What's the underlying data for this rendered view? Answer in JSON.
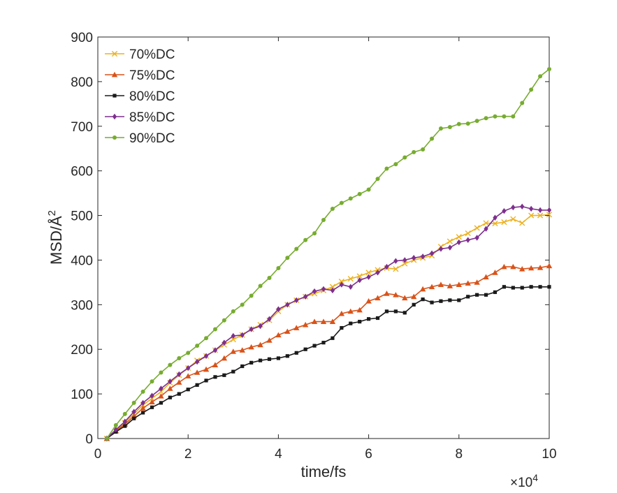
{
  "chart_data": {
    "type": "line",
    "title": "",
    "xlabel": "time/fs",
    "ylabel_main": "MSD/Å",
    "ylabel_sup": "2",
    "x_multiplier_base": "×10",
    "x_multiplier_exp": "4",
    "xlim": [
      0,
      10
    ],
    "ylim": [
      0,
      900
    ],
    "xticks": [
      0,
      2,
      4,
      6,
      8,
      10
    ],
    "xtick_labels": [
      "0",
      "2",
      "4",
      "6",
      "8",
      "10"
    ],
    "yticks": [
      0,
      100,
      200,
      300,
      400,
      500,
      600,
      700,
      800,
      900
    ],
    "ytick_labels": [
      "0",
      "100",
      "200",
      "300",
      "400",
      "500",
      "600",
      "700",
      "800",
      "900"
    ],
    "grid": false,
    "legend_position": "top-left",
    "x": [
      0.2,
      0.4,
      0.6,
      0.8,
      1.0,
      1.2,
      1.4,
      1.6,
      1.8,
      2.0,
      2.2,
      2.4,
      2.6,
      2.8,
      3.0,
      3.2,
      3.4,
      3.6,
      3.8,
      4.0,
      4.2,
      4.4,
      4.6,
      4.8,
      5.0,
      5.2,
      5.4,
      5.6,
      5.8,
      6.0,
      6.2,
      6.4,
      6.6,
      6.8,
      7.0,
      7.2,
      7.4,
      7.6,
      7.8,
      8.0,
      8.2,
      8.4,
      8.6,
      8.8,
      9.0,
      9.2,
      9.4,
      9.6,
      9.8,
      10.0
    ],
    "series": [
      {
        "name": "70%DC",
        "color": "#EDB120",
        "marker": "x",
        "values": [
          0,
          18,
          35,
          55,
          75,
          90,
          105,
          125,
          142,
          158,
          175,
          185,
          198,
          210,
          222,
          232,
          245,
          255,
          265,
          285,
          300,
          310,
          318,
          325,
          332,
          340,
          352,
          358,
          364,
          372,
          378,
          382,
          380,
          392,
          400,
          405,
          410,
          430,
          442,
          452,
          460,
          472,
          483,
          482,
          485,
          492,
          483,
          500,
          500,
          502
        ]
      },
      {
        "name": "75%DC",
        "color": "#D95319",
        "marker": "triangle",
        "values": [
          0,
          17,
          32,
          50,
          68,
          82,
          95,
          112,
          126,
          140,
          148,
          155,
          165,
          180,
          195,
          198,
          205,
          210,
          220,
          232,
          240,
          248,
          255,
          262,
          262,
          262,
          280,
          285,
          288,
          308,
          315,
          325,
          322,
          315,
          318,
          335,
          340,
          345,
          342,
          345,
          348,
          350,
          362,
          372,
          385,
          385,
          380,
          382,
          383,
          387
        ]
      },
      {
        "name": "80%DC",
        "color": "#1a1a1a",
        "marker": "square",
        "values": [
          0,
          15,
          28,
          45,
          58,
          70,
          80,
          92,
          100,
          110,
          120,
          130,
          138,
          142,
          150,
          162,
          170,
          175,
          178,
          180,
          185,
          192,
          200,
          208,
          215,
          225,
          248,
          258,
          262,
          268,
          270,
          285,
          285,
          282,
          300,
          312,
          305,
          308,
          310,
          310,
          318,
          322,
          322,
          328,
          340,
          338,
          338,
          340,
          340,
          340
        ]
      },
      {
        "name": "85%DC",
        "color": "#7E2F8E",
        "marker": "diamond",
        "values": [
          0,
          20,
          38,
          60,
          80,
          96,
          112,
          128,
          144,
          158,
          172,
          185,
          198,
          215,
          230,
          232,
          245,
          252,
          268,
          290,
          300,
          310,
          318,
          330,
          335,
          332,
          345,
          340,
          355,
          362,
          372,
          385,
          398,
          400,
          405,
          408,
          415,
          425,
          428,
          440,
          445,
          450,
          470,
          495,
          510,
          518,
          520,
          515,
          512,
          512
        ]
      },
      {
        "name": "90%DC",
        "color": "#77AC30",
        "marker": "circle",
        "values": [
          0,
          30,
          55,
          80,
          105,
          128,
          148,
          165,
          180,
          192,
          208,
          225,
          245,
          265,
          285,
          300,
          320,
          342,
          360,
          382,
          405,
          425,
          445,
          460,
          490,
          515,
          528,
          538,
          548,
          558,
          582,
          605,
          615,
          630,
          642,
          648,
          672,
          695,
          698,
          705,
          706,
          712,
          718,
          722,
          722,
          722,
          752,
          782,
          812,
          828
        ]
      }
    ]
  }
}
